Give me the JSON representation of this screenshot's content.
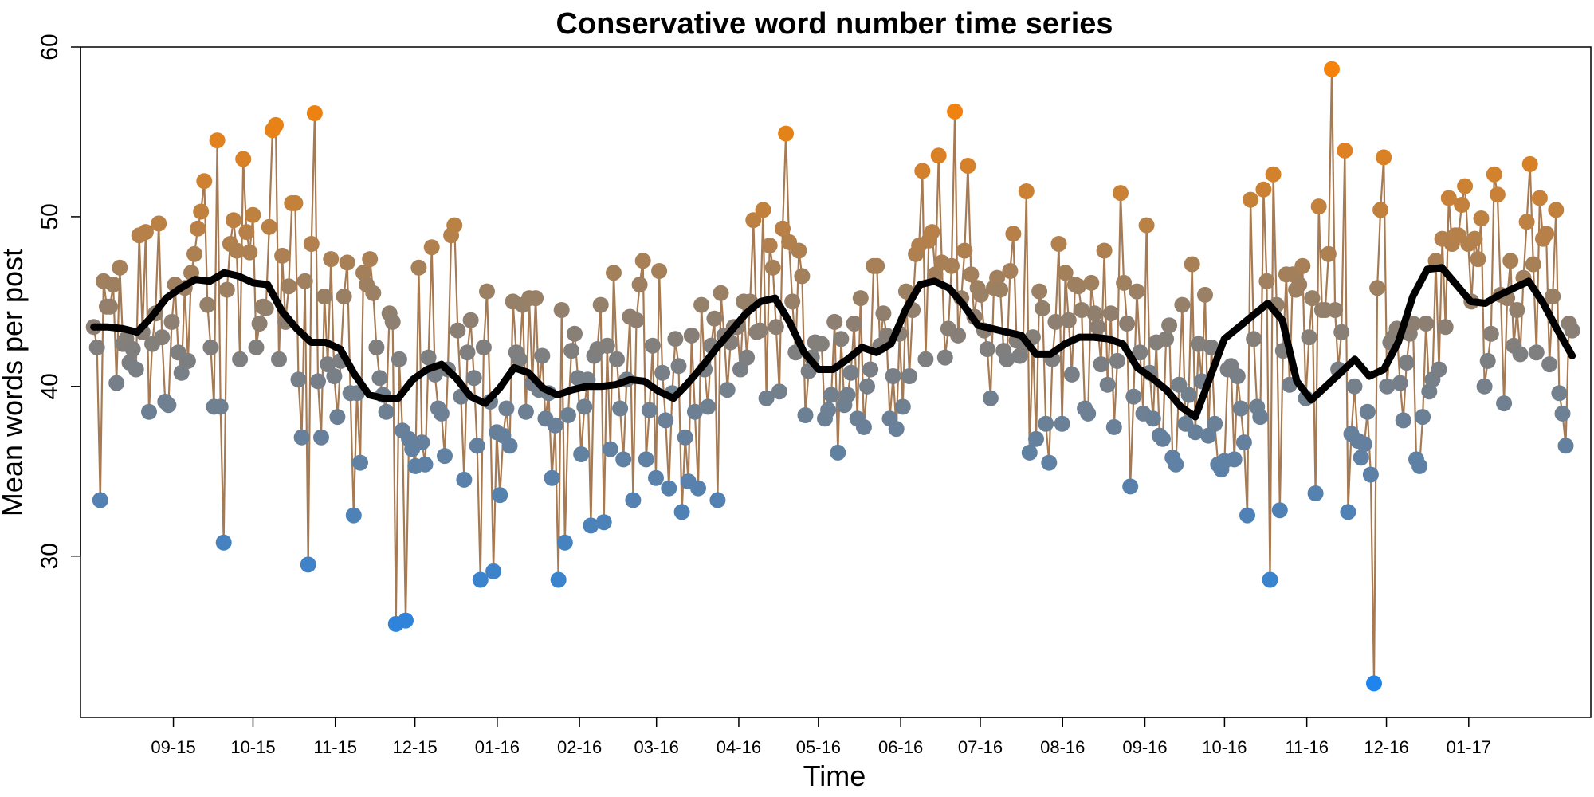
{
  "chart_data": {
    "type": "line",
    "title": "Conservative word number time series",
    "xlabel": "Time",
    "ylabel": "Mean words per post",
    "x_start": "2015-08-02",
    "x_end": "2017-02-09",
    "xlim": [
      "2015-07-28",
      "2017-02-16"
    ],
    "ylim": [
      20.5,
      60
    ],
    "x_ticks": [
      {
        "date": "2015-09-01",
        "label": "09-15"
      },
      {
        "date": "2015-10-01",
        "label": "10-15"
      },
      {
        "date": "2015-11-01",
        "label": "11-15"
      },
      {
        "date": "2015-12-01",
        "label": "12-15"
      },
      {
        "date": "2016-01-01",
        "label": "01-16"
      },
      {
        "date": "2016-02-01",
        "label": "02-16"
      },
      {
        "date": "2016-03-01",
        "label": "03-16"
      },
      {
        "date": "2016-04-01",
        "label": "04-16"
      },
      {
        "date": "2016-05-01",
        "label": "05-16"
      },
      {
        "date": "2016-06-01",
        "label": "06-16"
      },
      {
        "date": "2016-07-01",
        "label": "07-16"
      },
      {
        "date": "2016-08-01",
        "label": "08-16"
      },
      {
        "date": "2016-09-01",
        "label": "09-16"
      },
      {
        "date": "2016-10-01",
        "label": "10-16"
      },
      {
        "date": "2016-11-01",
        "label": "11-16"
      },
      {
        "date": "2016-12-01",
        "label": "12-16"
      },
      {
        "date": "2017-01-01",
        "label": "01-17"
      }
    ],
    "y_ticks": [
      30,
      40,
      50,
      60
    ],
    "grid": false,
    "legend": "none",
    "colors": {
      "high": "#f5820a",
      "mid": "#7f7f7f",
      "low": "#1f84ec",
      "connector": "#a67a52",
      "smooth": "#000000"
    },
    "series": [
      {
        "type": "points",
        "values": [
          43.5,
          42.3,
          33.3,
          46.2,
          44.7,
          44.7,
          46.0,
          40.2,
          47.0,
          42.5,
          42.8,
          41.4,
          42.2,
          41.0,
          48.9,
          43.2,
          49.1,
          38.5,
          42.5,
          44.3,
          49.6,
          42.9,
          39.1,
          38.9,
          43.8,
          46.0,
          42.0,
          40.8,
          45.8,
          41.5,
          46.7,
          47.8,
          49.3,
          50.3,
          52.1,
          44.8,
          42.3,
          38.8,
          54.5,
          38.8,
          30.8,
          45.7,
          48.4,
          49.8,
          48.0,
          41.6,
          53.4,
          49.1,
          47.9,
          50.1,
          42.3,
          43.7,
          44.7,
          44.6,
          49.4,
          55.1,
          55.4,
          41.6,
          47.7,
          43.8,
          45.9,
          50.8,
          50.8,
          40.4,
          37.0,
          46.2,
          29.5,
          48.4,
          56.1,
          40.3,
          37.0,
          45.3,
          41.3,
          47.5,
          40.6,
          38.2,
          41.5,
          45.3,
          47.3,
          39.6,
          32.4,
          39.6,
          35.5,
          46.7,
          46.0,
          47.5,
          45.5,
          42.3,
          40.5,
          39.5,
          38.5,
          44.3,
          43.8,
          26.0,
          41.6,
          37.4,
          26.2,
          36.9,
          36.3,
          35.3,
          47.0,
          36.7,
          35.4,
          41.7,
          48.2,
          40.7,
          38.7,
          38.4,
          35.9,
          41.0,
          48.9,
          49.5,
          43.3,
          39.4,
          34.5,
          42.0,
          43.9,
          40.5,
          36.5,
          28.6,
          42.3,
          45.6,
          39.1,
          29.1,
          37.3,
          33.6,
          37.1,
          38.7,
          36.5,
          45.0,
          42.0,
          41.6,
          44.8,
          38.5,
          45.2,
          40.2,
          45.2,
          39.8,
          41.8,
          38.1,
          39.6,
          34.6,
          37.7,
          28.6,
          44.5,
          30.8,
          38.3,
          42.1,
          43.1,
          40.5,
          36.0,
          38.8,
          40.4,
          31.8,
          41.8,
          42.2,
          44.8,
          32.0,
          42.4,
          36.3,
          46.7,
          41.6,
          38.7,
          35.7,
          40.4,
          44.1,
          33.3,
          43.9,
          46.0,
          47.4,
          35.7,
          38.6,
          42.4,
          34.6,
          46.8,
          40.8,
          38.0,
          34.0,
          39.6,
          42.8,
          41.2,
          32.6,
          37.0,
          34.4,
          43.0,
          38.5,
          34.0,
          44.8,
          41.0,
          38.8,
          42.4,
          44.0,
          33.3,
          45.5,
          43.0,
          39.8,
          42.6,
          43.5,
          43.5,
          41.0,
          45.0,
          41.7,
          45.0,
          49.8,
          43.2,
          43.3,
          50.4,
          39.3,
          48.3,
          47.0,
          43.5,
          39.7,
          49.3,
          54.9,
          48.5,
          45.0,
          42.0,
          48.0,
          46.5,
          38.3,
          40.9,
          41.7,
          42.6,
          42.5,
          42.5,
          38.1,
          38.6,
          39.5,
          43.8,
          36.1,
          42.8,
          38.9,
          39.5,
          40.8,
          43.7,
          38.1,
          45.2,
          37.6,
          40.0,
          41.0,
          47.1,
          47.1,
          42.4,
          44.3,
          43.0,
          38.1,
          40.6,
          37.5,
          43.1,
          38.8,
          45.6,
          40.6,
          44.5,
          47.8,
          48.3,
          52.7,
          41.6,
          48.6,
          49.1,
          46.6,
          53.6,
          47.3,
          41.7,
          43.4,
          47.1,
          56.2,
          43.0,
          45.2,
          48.0,
          53.0,
          46.6,
          44.1,
          45.8,
          45.4,
          43.3,
          42.2,
          39.3,
          45.8,
          46.4,
          45.7,
          42.1,
          41.6,
          46.8,
          49.0,
          42.7,
          41.8,
          42.5,
          51.5,
          36.1,
          42.9,
          36.9,
          45.6,
          44.6,
          37.8,
          35.5,
          41.6,
          43.8,
          48.4,
          37.8,
          46.7,
          43.9,
          40.7,
          46.0,
          45.9,
          44.5,
          38.7,
          38.4,
          46.1,
          44.3,
          43.5,
          41.3,
          48.0,
          40.1,
          44.3,
          37.6,
          41.5,
          51.4,
          46.1,
          43.7,
          34.1,
          39.4,
          45.6,
          42.0,
          38.4,
          49.5,
          40.8,
          38.1,
          42.6,
          37.1,
          36.9,
          42.8,
          43.6,
          35.8,
          35.4,
          40.1,
          44.8,
          37.8,
          39.5,
          47.2,
          37.3,
          42.5,
          40.3,
          45.4,
          37.1,
          42.3,
          37.8,
          35.4,
          35.1,
          35.6,
          41.0,
          41.2,
          35.7,
          40.6,
          38.7,
          36.7,
          32.4,
          51.0,
          42.8,
          38.8,
          38.2,
          51.6,
          46.2,
          28.6,
          52.5,
          44.8,
          32.7,
          42.1,
          46.6,
          40.1,
          46.6,
          45.7,
          46.0,
          47.1,
          39.3,
          42.9,
          45.2,
          33.7,
          50.6,
          44.5,
          44.5,
          47.8,
          58.7,
          44.5,
          41.0,
          43.2,
          53.9,
          32.6,
          37.2,
          40.0,
          36.8,
          35.8,
          36.6,
          38.5,
          34.8,
          22.5,
          45.8,
          50.4,
          53.5,
          40.0,
          42.6,
          42.9,
          43.4,
          40.2,
          38.0,
          41.4,
          43.1,
          43.7,
          35.7,
          35.3,
          38.2,
          43.7,
          39.7,
          40.4,
          47.4,
          41.0,
          48.7,
          43.5,
          51.1,
          48.4,
          48.9,
          48.9,
          50.7,
          51.8,
          48.4,
          45.0,
          48.7,
          47.5,
          49.9,
          40.0,
          41.5,
          43.1,
          52.5,
          51.3,
          45.4,
          39.0,
          45.2,
          47.4,
          42.4,
          44.5,
          41.9,
          46.4,
          49.7,
          53.1,
          47.2,
          42.0,
          51.1,
          48.7,
          49.0,
          41.3,
          45.3,
          50.4,
          39.6,
          38.4,
          36.5,
          43.7,
          43.3
        ]
      },
      {
        "type": "smooth",
        "values": [
          43.5,
          43.5,
          43.4,
          43.2,
          44.1,
          45.2,
          45.8,
          46.3,
          46.2,
          46.7,
          46.5,
          46.1,
          46.0,
          44.4,
          43.4,
          42.6,
          42.6,
          42.2,
          40.7,
          39.5,
          39.3,
          39.3,
          40.4,
          41.0,
          41.3,
          40.5,
          39.4,
          39.0,
          39.9,
          41.1,
          40.8,
          39.9,
          39.5,
          39.8,
          40.0,
          40.0,
          40.1,
          40.4,
          40.3,
          39.7,
          39.3,
          40.2,
          41.2,
          42.3,
          43.3,
          44.3,
          45.0,
          45.2,
          43.8,
          42.0,
          41.0,
          41.0,
          41.6,
          42.3,
          42.0,
          42.5,
          44.5,
          46.0,
          46.2,
          45.8,
          44.8,
          43.6,
          43.4,
          43.2,
          43.0,
          41.9,
          41.9,
          42.5,
          42.9,
          42.9,
          42.8,
          42.5,
          41.1,
          40.5,
          39.8,
          38.8,
          38.2,
          40.5,
          42.8,
          43.5,
          44.2,
          44.9,
          43.9,
          40.3,
          39.2,
          40.0,
          40.8,
          41.6,
          40.6,
          41.0,
          42.6,
          45.3,
          46.9,
          47.0,
          46.0,
          45.0,
          44.9,
          45.4,
          45.8,
          46.2,
          44.9,
          43.3,
          41.8
        ]
      }
    ]
  }
}
